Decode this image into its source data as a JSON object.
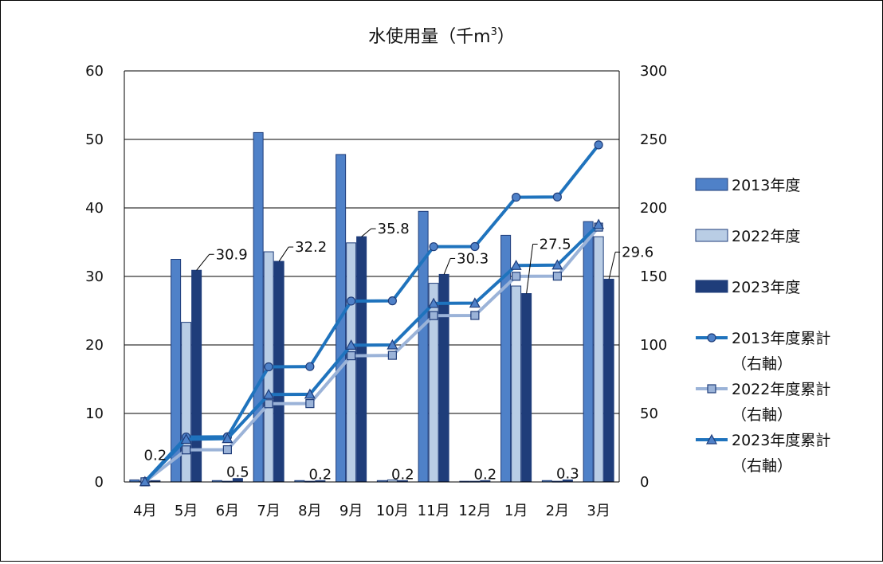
{
  "chart_data": {
    "type": "bar+line",
    "title": "水使用量（千m3）",
    "title_main": "水使用量（千m",
    "title_sup": "3",
    "title_close": "）",
    "categories": [
      "4月",
      "5月",
      "6月",
      "7月",
      "8月",
      "9月",
      "10月",
      "11月",
      "12月",
      "1月",
      "2月",
      "3月"
    ],
    "left_axis": {
      "min": 0,
      "max": 60,
      "ticks": [
        0,
        10,
        20,
        30,
        40,
        50,
        60
      ]
    },
    "right_axis": {
      "min": 0,
      "max": 300,
      "ticks": [
        0,
        50,
        100,
        150,
        200,
        250,
        300
      ]
    },
    "grid": true,
    "legend_position": "right",
    "series": [
      {
        "name": "2013年度",
        "kind": "bar",
        "axis": "left",
        "color": "#4f81c8",
        "values": [
          0.3,
          32.5,
          0.2,
          51.0,
          0.2,
          47.8,
          0.2,
          39.5,
          0.1,
          36.0,
          0.2,
          38.0
        ]
      },
      {
        "name": "2022年度",
        "kind": "bar",
        "axis": "left",
        "color": "#b9cde5",
        "values": [
          0.1,
          23.3,
          0.1,
          33.6,
          0.1,
          34.9,
          0.3,
          29.0,
          0.1,
          28.6,
          0.1,
          35.8
        ]
      },
      {
        "name": "2023年度",
        "kind": "bar",
        "axis": "left",
        "color": "#1f3d7a",
        "values": [
          0.2,
          30.9,
          0.5,
          32.2,
          0.2,
          35.8,
          0.2,
          30.3,
          0.2,
          27.5,
          0.3,
          29.6
        ]
      },
      {
        "name": "2013年度累計",
        "name2": "（右軸）",
        "kind": "line",
        "axis": "right",
        "marker": "circle",
        "color": "#1f73bd",
        "values": [
          0.3,
          32.8,
          33.0,
          84.0,
          84.2,
          132.0,
          132.2,
          171.7,
          171.8,
          207.8,
          208.0,
          246.0
        ]
      },
      {
        "name": "2022年度累計",
        "name2": "（右軸）",
        "kind": "line",
        "axis": "right",
        "marker": "square",
        "color": "#9bb3d8",
        "values": [
          0.1,
          23.4,
          23.5,
          57.1,
          57.2,
          92.1,
          92.4,
          121.4,
          121.5,
          150.1,
          150.2,
          186.0
        ]
      },
      {
        "name": "2023年度累計",
        "name2": "（右軸）",
        "kind": "line",
        "axis": "right",
        "marker": "triangle",
        "color": "#1f73bd",
        "values": [
          0.2,
          31.1,
          31.6,
          63.8,
          64.0,
          99.8,
          100.0,
          130.3,
          130.5,
          158.0,
          158.3,
          187.9
        ]
      }
    ],
    "data_labels": [
      "0.2",
      "30.9",
      "0.5",
      "32.2",
      "0.2",
      "35.8",
      "0.2",
      "30.3",
      "0.2",
      "27.5",
      "0.3",
      "29.6"
    ]
  }
}
